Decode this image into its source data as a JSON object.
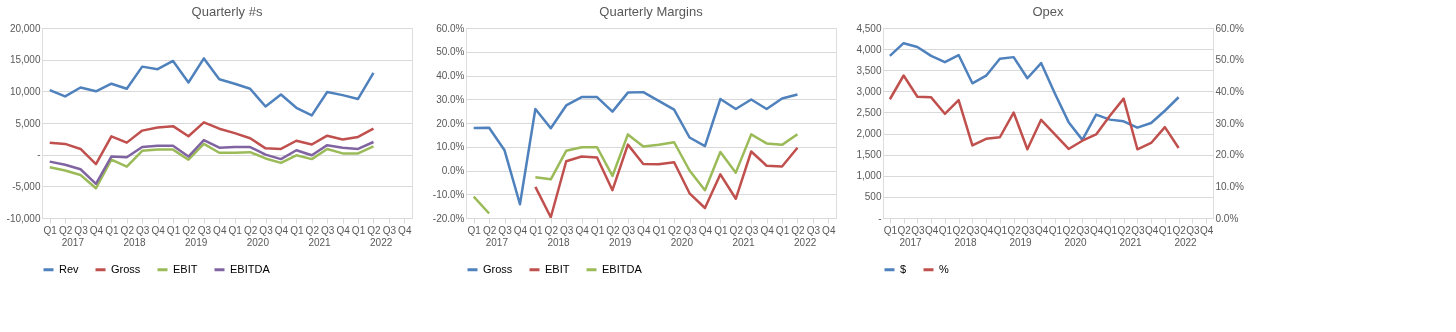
{
  "chart_data": [
    {
      "type": "line",
      "title": "Quarterly #s",
      "categories": [
        "Q1",
        "Q2",
        "Q3",
        "Q4",
        "Q1",
        "Q2",
        "Q3",
        "Q4",
        "Q1",
        "Q2",
        "Q3",
        "Q4",
        "Q1",
        "Q2",
        "Q3",
        "Q4",
        "Q1",
        "Q2",
        "Q3",
        "Q4",
        "Q1",
        "Q2",
        "Q3",
        "Q4"
      ],
      "annotations": [
        "2017",
        "2018",
        "2019",
        "2020",
        "2021",
        "2022"
      ],
      "series": [
        {
          "name": "Rev",
          "color": "#4f81bd",
          "values": [
            10200,
            9200,
            10600,
            10000,
            11200,
            10400,
            13900,
            13500,
            14800,
            11400,
            15200,
            11900,
            11200,
            10400,
            7600,
            9500,
            7400,
            6200,
            9900,
            9400,
            8800,
            12900,
            null,
            null
          ]
        },
        {
          "name": "Gross",
          "color": "#c0504d",
          "values": [
            1900,
            1700,
            900,
            -1500,
            2900,
            1900,
            3800,
            4300,
            4500,
            2900,
            5100,
            4100,
            3400,
            2600,
            1000,
            900,
            2200,
            1600,
            3000,
            2400,
            2800,
            4100,
            null,
            null
          ]
        },
        {
          "name": "EBIT",
          "color": "#9bbb59",
          "values": [
            -2000,
            -2500,
            -3200,
            -5300,
            -800,
            -1900,
            600,
            800,
            800,
            -800,
            1700,
            300,
            300,
            400,
            -600,
            -1300,
            -100,
            -700,
            900,
            200,
            200,
            1300,
            null,
            null
          ]
        },
        {
          "name": "EBITDA",
          "color": "#8064a2",
          "values": [
            -1100,
            -1600,
            -2300,
            -4600,
            -300,
            -400,
            1200,
            1400,
            1400,
            -300,
            2300,
            1100,
            1200,
            1200,
            0,
            -700,
            700,
            -100,
            1500,
            1100,
            900,
            2000,
            null,
            null
          ]
        }
      ],
      "ylim": [
        -10000,
        20000
      ],
      "yticks": [
        {
          "value": -10000,
          "label": "-10,000"
        },
        {
          "value": -5000,
          "label": "-5,000"
        },
        {
          "value": 0,
          "label": "-"
        },
        {
          "value": 5000,
          "label": "5,000"
        },
        {
          "value": 10000,
          "label": "10,000"
        },
        {
          "value": 15000,
          "label": "15,000"
        },
        {
          "value": 20000,
          "label": "20,000"
        }
      ],
      "grid": "y",
      "legend": "bottom"
    },
    {
      "type": "line",
      "title": "Quarterly Margins",
      "categories": [
        "Q1",
        "Q2",
        "Q3",
        "Q4",
        "Q1",
        "Q2",
        "Q3",
        "Q4",
        "Q1",
        "Q2",
        "Q3",
        "Q4",
        "Q1",
        "Q2",
        "Q3",
        "Q4",
        "Q1",
        "Q2",
        "Q3",
        "Q4",
        "Q1",
        "Q2",
        "Q3",
        "Q4"
      ],
      "annotations": [
        "2017",
        "2018",
        "2019",
        "2020",
        "2021",
        "2022"
      ],
      "series": [
        {
          "name": "Gross",
          "color": "#4f81bd",
          "values": [
            17.9,
            18.0,
            8.5,
            -14.2,
            25.9,
            17.8,
            27.4,
            30.9,
            30.9,
            24.8,
            32.8,
            33.0,
            29.3,
            25.6,
            13.9,
            10.3,
            30.1,
            25.9,
            29.9,
            25.9,
            30.3,
            32.0,
            null,
            null
          ]
        },
        {
          "name": "EBIT",
          "color": "#c0504d",
          "values": [
            null,
            null,
            null,
            null,
            -6.9,
            -19.7,
            3.9,
            5.9,
            5.5,
            -8.3,
            10.9,
            2.7,
            2.6,
            3.5,
            -9.6,
            -15.8,
            -1.6,
            -11.9,
            8.0,
            2.0,
            1.7,
            9.6,
            null,
            null
          ]
        },
        {
          "name": "EBITDA",
          "color": "#9bbb59",
          "values": [
            -11.0,
            -18.1,
            null,
            null,
            -2.8,
            -3.7,
            8.3,
            9.8,
            9.8,
            -2.3,
            15.2,
            10.1,
            10.8,
            11.9,
            0.0,
            -8.3,
            7.8,
            -0.9,
            15.2,
            11.4,
            10.8,
            15.3,
            null,
            null
          ]
        }
      ],
      "ylim": [
        -20,
        60
      ],
      "yticks": [
        {
          "value": -20,
          "label": "-20.0%"
        },
        {
          "value": -10,
          "label": "-10.0%"
        },
        {
          "value": 0,
          "label": "0.0%"
        },
        {
          "value": 10,
          "label": "10.0%"
        },
        {
          "value": 20,
          "label": "20.0%"
        },
        {
          "value": 30,
          "label": "30.0%"
        },
        {
          "value": 40,
          "label": "40.0%"
        },
        {
          "value": 50,
          "label": "50.0%"
        },
        {
          "value": 60,
          "label": "60.0%"
        }
      ],
      "grid": "y",
      "legend": "bottom"
    },
    {
      "type": "line",
      "title": "Opex",
      "categories": [
        "Q1",
        "Q2",
        "Q3",
        "Q4",
        "Q1",
        "Q2",
        "Q3",
        "Q4",
        "Q1",
        "Q2",
        "Q3",
        "Q4",
        "Q1",
        "Q2",
        "Q3",
        "Q4",
        "Q1",
        "Q2",
        "Q3",
        "Q4",
        "Q1",
        "Q2",
        "Q3",
        "Q4"
      ],
      "annotations": [
        "2017",
        "2018",
        "2019",
        "2020",
        "2021",
        "2022"
      ],
      "series": [
        {
          "name": "$",
          "color": "#4f81bd",
          "values": [
            3840,
            4140,
            4050,
            3840,
            3690,
            3860,
            3190,
            3370,
            3770,
            3810,
            3310,
            3670,
            2950,
            2270,
            1850,
            2450,
            2330,
            2290,
            2140,
            2250,
            2540,
            2860,
            null,
            null
          ]
        },
        {
          "name": "%",
          "color": "#c0504d",
          "axis": "y2",
          "values": [
            37.5,
            45.0,
            38.3,
            38.1,
            32.9,
            37.2,
            22.9,
            25.0,
            25.5,
            33.3,
            21.7,
            31.0,
            26.4,
            21.8,
            24.4,
            26.4,
            32.3,
            37.7,
            21.7,
            23.7,
            28.7,
            22.1,
            null,
            null
          ]
        }
      ],
      "ylim": [
        0,
        4500
      ],
      "yticks": [
        {
          "value": 0,
          "label": "-"
        },
        {
          "value": 500,
          "label": "500"
        },
        {
          "value": 1000,
          "label": "1,000"
        },
        {
          "value": 1500,
          "label": "1,500"
        },
        {
          "value": 2000,
          "label": "2,000"
        },
        {
          "value": 2500,
          "label": "2,500"
        },
        {
          "value": 3000,
          "label": "3,000"
        },
        {
          "value": 3500,
          "label": "3,500"
        },
        {
          "value": 4000,
          "label": "4,000"
        },
        {
          "value": 4500,
          "label": "4,500"
        }
      ],
      "y2lim": [
        0,
        60
      ],
      "y2ticks": [
        {
          "value": 0,
          "label": "0.0%"
        },
        {
          "value": 10,
          "label": "10.0%"
        },
        {
          "value": 20,
          "label": "20.0%"
        },
        {
          "value": 30,
          "label": "30.0%"
        },
        {
          "value": 40,
          "label": "40.0%"
        },
        {
          "value": 50,
          "label": "50.0%"
        },
        {
          "value": 60,
          "label": "60.0%"
        }
      ],
      "grid": "y",
      "legend": "bottom"
    }
  ]
}
